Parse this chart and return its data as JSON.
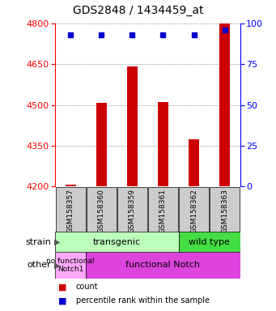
{
  "title": "GDS2848 / 1434459_at",
  "samples": [
    "GSM158357",
    "GSM158360",
    "GSM158359",
    "GSM158361",
    "GSM158362",
    "GSM158363"
  ],
  "bar_values": [
    4207,
    4507,
    4641,
    4510,
    4375,
    4800
  ],
  "percentile_values": [
    93,
    93,
    93,
    93,
    93,
    96
  ],
  "ylim_left": [
    4200,
    4800
  ],
  "ylim_right": [
    0,
    100
  ],
  "yticks_left": [
    4200,
    4350,
    4500,
    4650,
    4800
  ],
  "yticks_right": [
    0,
    25,
    50,
    75,
    100
  ],
  "bar_color": "#cc0000",
  "dot_color": "#0000cc",
  "bar_width": 0.35,
  "color_transgenic_light": "#bbffbb",
  "color_transgenic_dark": "#44dd44",
  "color_nofunctional": "#ffaaff",
  "color_functional": "#dd44dd",
  "color_xticklabel_bg": "#cccccc",
  "legend_count_color": "#cc0000",
  "legend_pct_color": "#0000cc",
  "grid_color": "#555555",
  "background_color": "#ffffff",
  "title_fontsize": 10,
  "tick_fontsize": 8,
  "label_fontsize": 8,
  "sample_fontsize": 6.5
}
